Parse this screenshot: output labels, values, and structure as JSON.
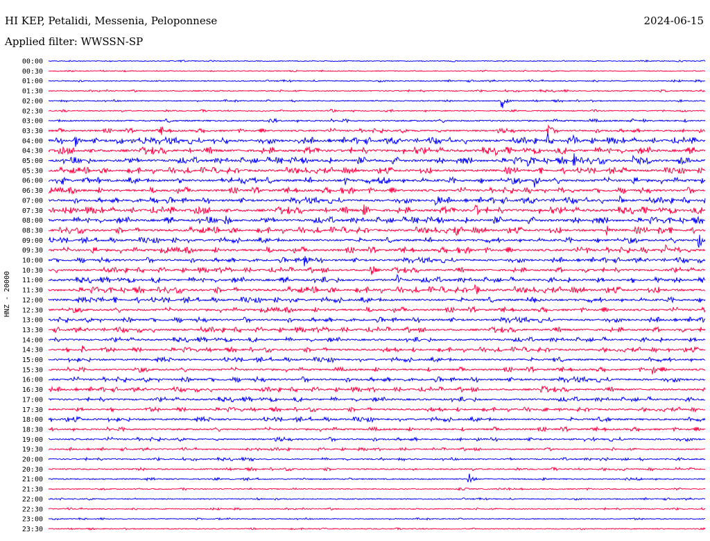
{
  "header": {
    "station": "HI KEP, Petalidi, Messenia, Peloponnese",
    "date": "2024-06-15",
    "filter": "Applied filter: WWSSN-SP"
  },
  "chart_data": {
    "type": "line",
    "ylabel": "HNZ - 20000",
    "grid": false,
    "colors": [
      "#0000ff",
      "#ff0040"
    ],
    "trace_labels": [
      "00:00",
      "00:30",
      "01:00",
      "01:30",
      "02:00",
      "02:30",
      "03:00",
      "03:30",
      "04:00",
      "04:30",
      "05:00",
      "05:30",
      "06:00",
      "06:30",
      "07:00",
      "07:30",
      "08:00",
      "08:30",
      "09:00",
      "09:30",
      "10:00",
      "10:30",
      "11:00",
      "11:30",
      "12:00",
      "12:30",
      "13:00",
      "13:30",
      "14:00",
      "14:30",
      "15:00",
      "15:30",
      "16:00",
      "16:30",
      "17:00",
      "17:30",
      "18:00",
      "18:30",
      "19:00",
      "19:30",
      "20:00",
      "20:30",
      "21:00",
      "21:30",
      "22:00",
      "22:30",
      "23:00",
      "23:30"
    ],
    "noise_level": [
      0.5,
      0.5,
      0.8,
      0.8,
      0.8,
      0.8,
      1.5,
      1.8,
      2.8,
      3.0,
      2.8,
      2.6,
      2.8,
      2.6,
      2.6,
      3.0,
      2.8,
      2.6,
      2.4,
      2.6,
      2.2,
      2.2,
      2.4,
      2.6,
      2.4,
      2.2,
      2.2,
      2.2,
      2.0,
      2.0,
      2.0,
      2.0,
      2.2,
      2.0,
      2.0,
      1.8,
      2.0,
      1.8,
      1.6,
      1.2,
      1.2,
      1.2,
      1.0,
      0.8,
      0.8,
      0.8,
      0.6,
      0.6
    ],
    "events": [
      {
        "trace": "02:00",
        "t": 0.69,
        "amp": 14
      },
      {
        "trace": "02:30",
        "t": 0.43,
        "amp": 5
      },
      {
        "trace": "03:30",
        "t": 0.17,
        "amp": 10
      },
      {
        "trace": "03:30",
        "t": 0.76,
        "amp": 14
      },
      {
        "trace": "04:00",
        "t": 0.04,
        "amp": 11
      },
      {
        "trace": "04:00",
        "t": 0.76,
        "amp": 12
      },
      {
        "trace": "04:00",
        "t": 0.8,
        "amp": 12
      },
      {
        "trace": "04:30",
        "t": 0.68,
        "amp": 9
      },
      {
        "trace": "05:00",
        "t": 0.73,
        "amp": 12
      },
      {
        "trace": "05:00",
        "t": 0.8,
        "amp": 12
      },
      {
        "trace": "05:00",
        "t": 0.89,
        "amp": 8
      },
      {
        "trace": "06:00",
        "t": 0.02,
        "amp": 9
      },
      {
        "trace": "06:00",
        "t": 0.45,
        "amp": 9
      },
      {
        "trace": "06:00",
        "t": 0.74,
        "amp": 12
      },
      {
        "trace": "07:00",
        "t": 0.59,
        "amp": 14
      },
      {
        "trace": "07:00",
        "t": 0.87,
        "amp": 8
      },
      {
        "trace": "07:30",
        "t": 0.04,
        "amp": 8
      },
      {
        "trace": "07:30",
        "t": 0.48,
        "amp": 14
      },
      {
        "trace": "07:30",
        "t": 0.65,
        "amp": 11
      },
      {
        "trace": "08:00",
        "t": 0.27,
        "amp": 11
      },
      {
        "trace": "08:30",
        "t": 0.62,
        "amp": 14
      },
      {
        "trace": "08:30",
        "t": 0.85,
        "amp": 8
      },
      {
        "trace": "08:30",
        "t": 0.93,
        "amp": 10
      },
      {
        "trace": "09:00",
        "t": 0.99,
        "amp": 14
      },
      {
        "trace": "09:30",
        "t": 0.82,
        "amp": 6
      },
      {
        "trace": "09:30",
        "t": 0.94,
        "amp": 9
      },
      {
        "trace": "10:00",
        "t": 0.39,
        "amp": 12
      },
      {
        "trace": "10:30",
        "t": 0.49,
        "amp": 13
      },
      {
        "trace": "11:00",
        "t": 0.53,
        "amp": 10
      },
      {
        "trace": "11:30",
        "t": 0.65,
        "amp": 11
      },
      {
        "trace": "12:00",
        "t": 0.37,
        "amp": 12
      },
      {
        "trace": "12:00",
        "t": 0.74,
        "amp": 8
      },
      {
        "trace": "13:00",
        "t": 0.7,
        "amp": 6
      },
      {
        "trace": "14:30",
        "t": 0.05,
        "amp": 10
      },
      {
        "trace": "15:00",
        "t": 0.77,
        "amp": 5
      },
      {
        "trace": "15:30",
        "t": 0.92,
        "amp": 8
      },
      {
        "trace": "16:30",
        "t": 0.75,
        "amp": 13
      },
      {
        "trace": "18:00",
        "t": 0.85,
        "amp": 5
      },
      {
        "trace": "21:00",
        "t": 0.64,
        "amp": 12
      }
    ]
  }
}
